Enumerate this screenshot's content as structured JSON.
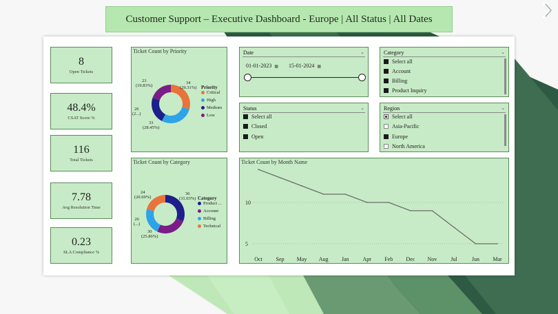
{
  "title": "Customer Support – Executive Dashboard - Europe | All Status | All Dates",
  "kpis": [
    {
      "value": "8",
      "label": "Open Tickets"
    },
    {
      "value": "48.4%",
      "label": "CSAT Score %"
    },
    {
      "value": "116",
      "label": "Total Tickets"
    },
    {
      "value": "7.78",
      "label": "Avg Resolution Time"
    },
    {
      "value": "0.23",
      "label": "SLA Compliance %"
    }
  ],
  "priority_chart": {
    "title": "Ticket Count by Priority",
    "legend_title": "Priority",
    "legend": [
      "Critical",
      "High",
      "Medium",
      "Low"
    ],
    "labels": {
      "critical": [
        "34",
        "(29.31%)"
      ],
      "high": [
        "33",
        "(28.45%)"
      ],
      "medium": [
        "26",
        "(2...)"
      ],
      "low": [
        "23",
        "(19.83%)"
      ]
    }
  },
  "category_chart": {
    "title": "Ticket Count by Category",
    "legend_title": "Category",
    "legend": [
      "Product ...",
      "Account",
      "Billing",
      "Technical"
    ],
    "labels": {
      "product": [
        "36",
        "(31.03%)"
      ],
      "account": [
        "30",
        "(25.86%)"
      ],
      "billing": [
        "26",
        "(...)"
      ],
      "technical": [
        "24",
        "(20.69%)"
      ]
    }
  },
  "date_slicer": {
    "title": "Date",
    "start": "01-01-2023",
    "end": "15-01-2024"
  },
  "category_slicer": {
    "title": "Category",
    "options": [
      "Select all",
      "Account",
      "Billing",
      "Product Inquiry"
    ]
  },
  "status_slicer": {
    "title": "Status",
    "options": [
      "Select all",
      "Closed",
      "Open"
    ]
  },
  "region_slicer": {
    "title": "Region",
    "options": [
      "Select all",
      "Asia-Pacific",
      "Europe",
      "North America"
    ]
  },
  "colors": {
    "critical": "#e8743b",
    "high": "#2ea3e8",
    "medium": "#1c1f8c",
    "low": "#7a1d86",
    "product": "#1c1f8c",
    "account": "#7a1d86",
    "billing": "#2ea3e8",
    "technical": "#e8743b",
    "card": "#c7ebc6",
    "line": "#6b6b6b"
  },
  "chart_data": [
    {
      "type": "pie",
      "title": "Ticket Count by Priority",
      "categories": [
        "Critical",
        "High",
        "Medium",
        "Low"
      ],
      "values": [
        34,
        33,
        26,
        23
      ],
      "percent": [
        29.31,
        28.45,
        22.41,
        19.83
      ]
    },
    {
      "type": "pie",
      "title": "Ticket Count by Category",
      "categories": [
        "Product Inquiry",
        "Account",
        "Billing",
        "Technical"
      ],
      "values": [
        36,
        30,
        26,
        24
      ],
      "percent": [
        31.03,
        25.86,
        22.41,
        20.69
      ]
    },
    {
      "type": "line",
      "title": "Ticket Count by Month Name",
      "categories": [
        "Oct",
        "Sep",
        "May",
        "Aug",
        "Jan",
        "Apr",
        "Feb",
        "Dec",
        "Nov",
        "Jul",
        "Jun",
        "Mar"
      ],
      "values": [
        14,
        13,
        12,
        11,
        11,
        10,
        10,
        9,
        9,
        7,
        5,
        5
      ],
      "yticks": [
        "10",
        "5"
      ],
      "ylim": [
        4,
        14.5
      ]
    }
  ]
}
